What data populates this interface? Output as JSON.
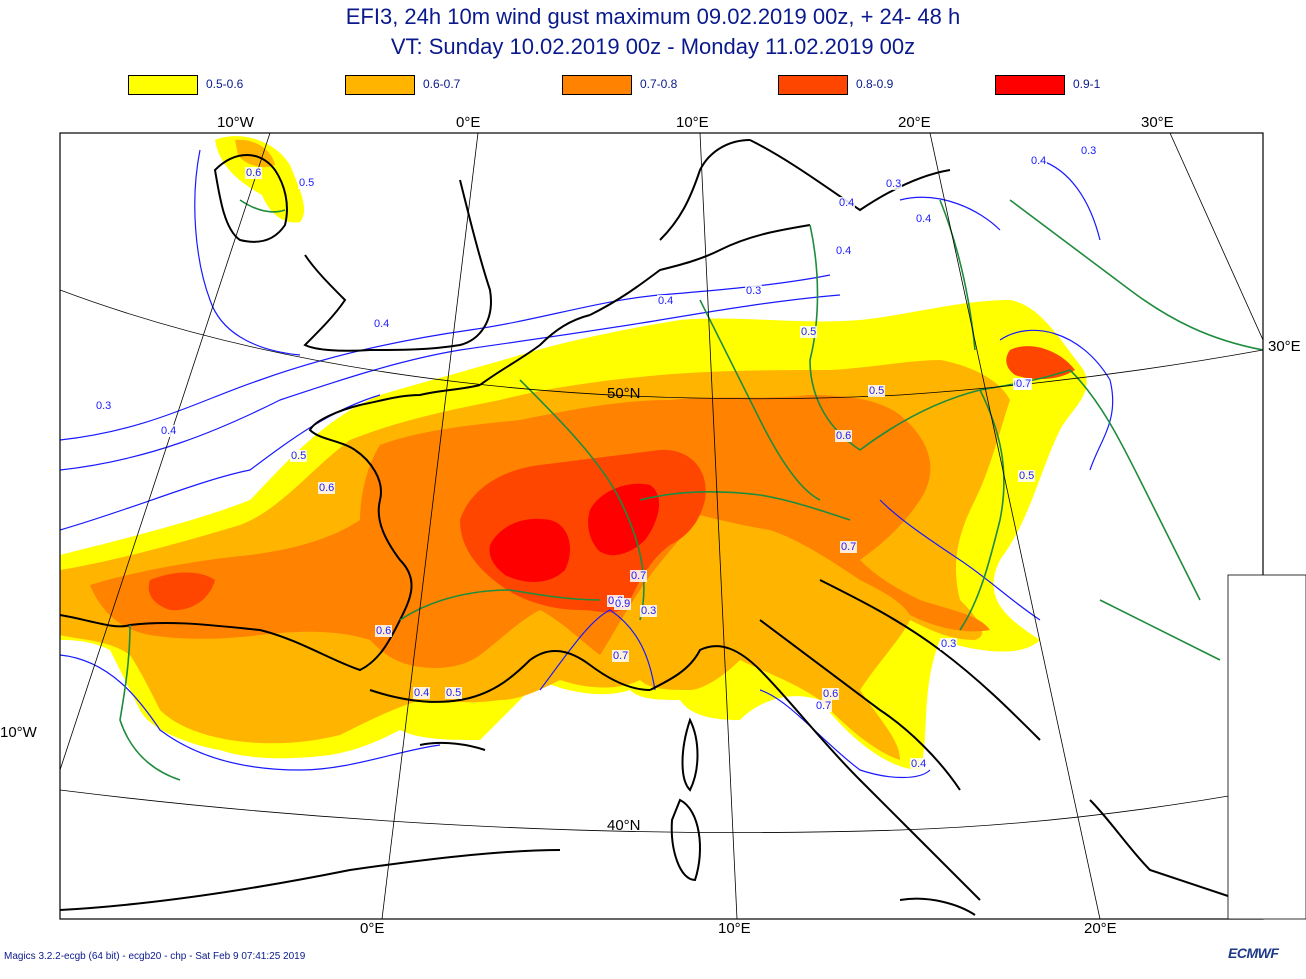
{
  "header": {
    "title_line1": "EFI3, 24h 10m wind gust maximum 09.02.2019 00z, + 24- 48 h",
    "title_line2": "VT: Sunday    10.02.2019 00z - Monday    11.02.2019 00z"
  },
  "legend": [
    {
      "label": "0.5-0.6",
      "color": "#ffff00"
    },
    {
      "label": "0.6-0.7",
      "color": "#ffb400"
    },
    {
      "label": "0.7-0.8",
      "color": "#ff8200"
    },
    {
      "label": "0.8-0.9",
      "color": "#ff4600"
    },
    {
      "label": "0.9-1",
      "color": "#ff0000"
    }
  ],
  "axes": {
    "top": [
      "10°W",
      "0°E",
      "10°E",
      "20°E",
      "30°E"
    ],
    "bottom": [
      "0°E",
      "10°E",
      "20°E"
    ],
    "left": [
      "10°W"
    ],
    "right": [
      "30°E"
    ],
    "lat": [
      "50°N",
      "40°N"
    ]
  },
  "contour_labels": [
    "0.6",
    "0.5",
    "0.4",
    "0.3",
    "0.4",
    "0.5",
    "0.6",
    "0.7",
    "0.8",
    "0.9",
    "0.7",
    "0.6",
    "0.5",
    "0.4",
    "0.3",
    "0.7",
    "0.5",
    "0.7",
    "0.3",
    "0.4",
    "0.3",
    "0.4",
    "0.4",
    "0.3",
    "0.4",
    "0.3",
    "0.4",
    "0.7",
    "0.5",
    "0.6",
    "0.4",
    "0.5",
    "0.6",
    "0.7"
  ],
  "footer": {
    "credit": "Magics 3.2.2-ecgb (64 bit) - ecgb20 - chp - Sat Feb  9 07:41:25 2019",
    "logo": "ECMWF"
  },
  "colors": {
    "contour": "#1a1aff",
    "coast": "#000000",
    "border": "#1e8c3c",
    "text": "#0a1a8c"
  }
}
